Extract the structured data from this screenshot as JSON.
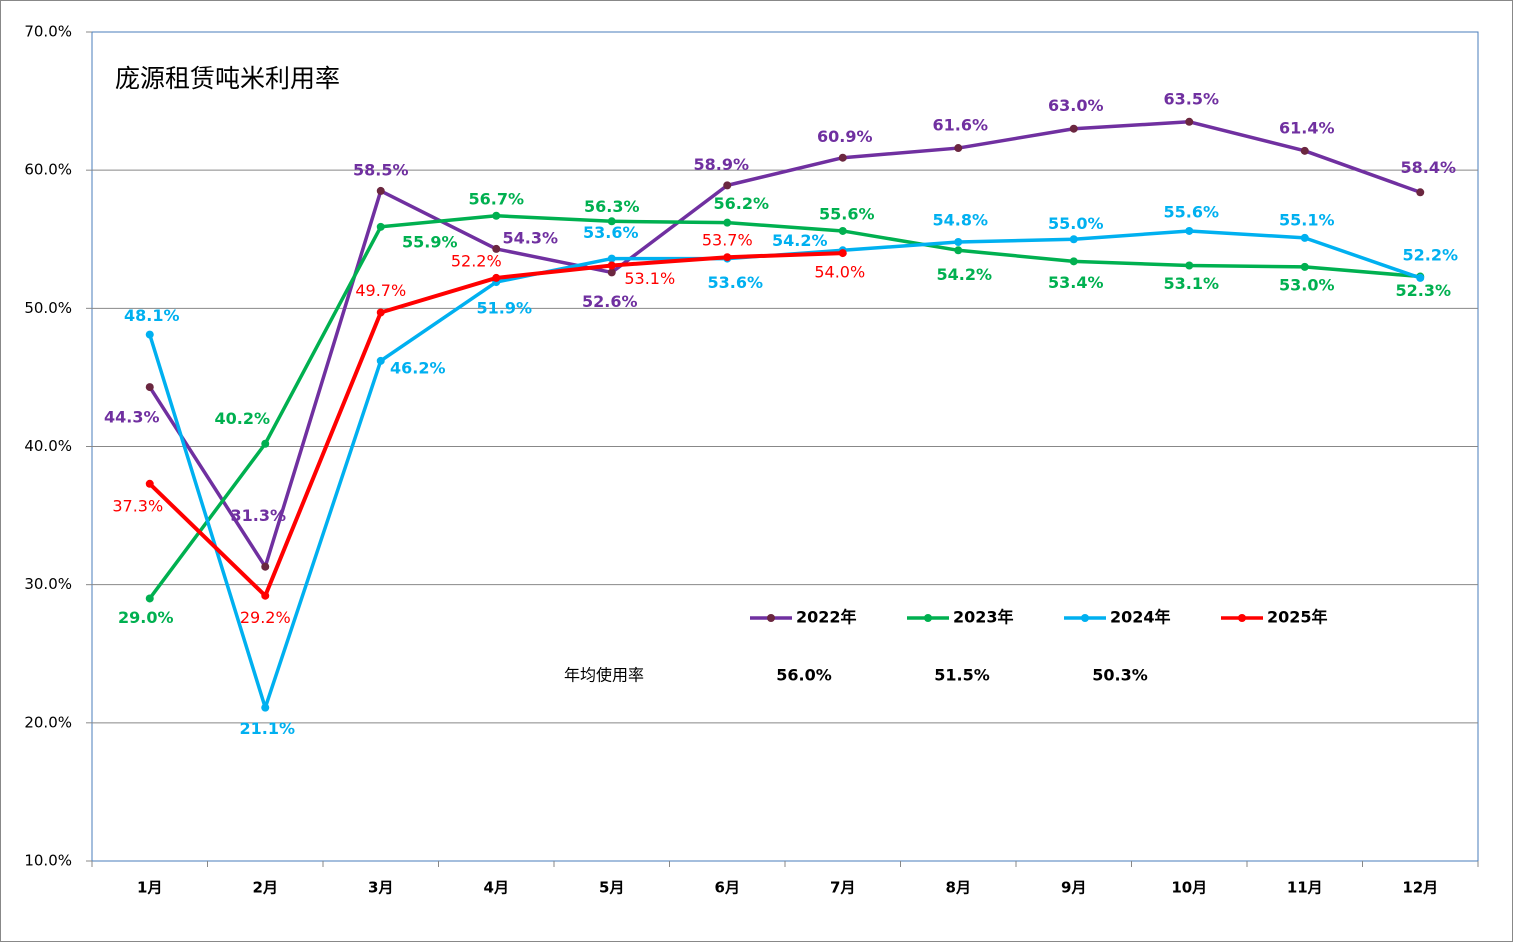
{
  "chart_data": {
    "type": "line",
    "title": "庞源租赁吨米利用率",
    "categories": [
      "1月",
      "2月",
      "3月",
      "4月",
      "5月",
      "6月",
      "7月",
      "8月",
      "9月",
      "10月",
      "11月",
      "12月"
    ],
    "ylim": [
      10,
      70
    ],
    "yticks": [
      {
        "value": 10,
        "label": "10.0%"
      },
      {
        "value": 20,
        "label": "20.0%"
      },
      {
        "value": 30,
        "label": "30.0%"
      },
      {
        "value": 40,
        "label": "40.0%"
      },
      {
        "value": 50,
        "label": "50.0%"
      },
      {
        "value": 60,
        "label": "60.0%"
      },
      {
        "value": 70,
        "label": "70.0%"
      }
    ],
    "grid": true,
    "legend": "inside",
    "series": [
      {
        "name": "2022年",
        "color": "#7030a0",
        "values": [
          44.3,
          31.3,
          58.5,
          54.3,
          52.6,
          58.9,
          60.9,
          61.6,
          63.0,
          63.5,
          61.4,
          58.4
        ],
        "value_labels": [
          "44.3%",
          "31.3%",
          "58.5%",
          "54.3%",
          "52.6%",
          "58.9%",
          "60.9%",
          "61.6%",
          "63.0%",
          "63.5%",
          "61.4%",
          "58.4%"
        ]
      },
      {
        "name": "2023年",
        "color": "#00b050",
        "values": [
          29.0,
          40.2,
          55.9,
          56.7,
          56.3,
          56.2,
          55.6,
          54.2,
          53.4,
          53.1,
          53.0,
          52.3
        ],
        "value_labels": [
          "29.0%",
          "40.2%",
          "55.9%",
          "56.7%",
          "56.3%",
          "56.2%",
          "55.6%",
          "54.2%",
          "53.4%",
          "53.1%",
          "53.0%",
          "52.3%"
        ]
      },
      {
        "name": "2024年",
        "color": "#00b0f0",
        "values": [
          48.1,
          21.1,
          46.2,
          51.9,
          53.6,
          53.6,
          54.2,
          54.8,
          55.0,
          55.6,
          55.1,
          52.2
        ],
        "value_labels": [
          "48.1%",
          "21.1%",
          "46.2%",
          "51.9%",
          "53.6%",
          "53.6%",
          "54.2%",
          "54.8%",
          "55.0%",
          "55.6%",
          "55.1%",
          "52.2%"
        ]
      },
      {
        "name": "2025年",
        "color": "#ff0000",
        "values": [
          37.3,
          29.2,
          49.7,
          52.2,
          53.1,
          53.7,
          54.0,
          null,
          null,
          null,
          null,
          null
        ],
        "value_labels": [
          "37.3%",
          "29.2%",
          "49.7%",
          "52.2%",
          "53.1%",
          "53.7%",
          "54.0%",
          null,
          null,
          null,
          null,
          null
        ]
      }
    ],
    "annual_average": {
      "label": "年均使用率",
      "values": [
        56.0,
        51.5,
        50.3
      ],
      "value_labels": [
        "56.0%",
        "51.5%",
        "50.3%"
      ]
    }
  }
}
